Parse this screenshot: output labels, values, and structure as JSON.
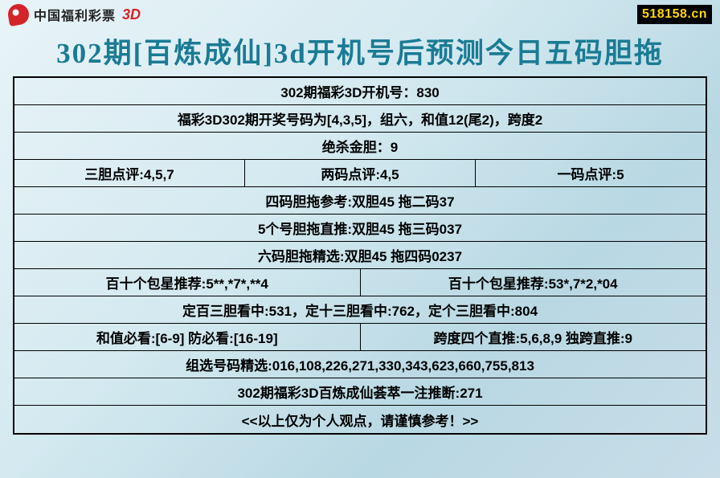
{
  "header": {
    "logo_text": "中国福利彩票",
    "logo_3d": "3D",
    "site": "518158.cn"
  },
  "title": "302期[百炼成仙]3d开机号后预测今日五码胆拖",
  "rows": {
    "r1": "302期福彩3D开机号：830",
    "r2": "福彩3D302期开奖号码为[4,3,5]，组六，和值12(尾2)，跨度2",
    "r3": "绝杀金胆：9",
    "r4a": "三胆点评:4,5,7",
    "r4b": "两码点评:4,5",
    "r4c": "一码点评:5",
    "r5": "四码胆拖参考:双胆45 拖二码37",
    "r6": "5个号胆拖直推:双胆45 拖三码037",
    "r7": "六码胆拖精选:双胆45 拖四码0237",
    "r8a": "百十个包星推荐:5**,*7*,**4",
    "r8b": "百十个包星推荐:53*,7*2,*04",
    "r9": "定百三胆看中:531，定十三胆看中:762，定个三胆看中:804",
    "r10a": "和值必看:[6-9] 防必看:[16-19]",
    "r10b": "跨度四个直推:5,6,8,9 独跨直推:9",
    "r11": "组选号码精选:016,108,226,271,330,343,623,660,755,813",
    "r12": "302期福彩3D百炼成仙荟萃一注推断:271",
    "r13": "<<以上仅为个人观点，请谨慎参考！>>"
  }
}
